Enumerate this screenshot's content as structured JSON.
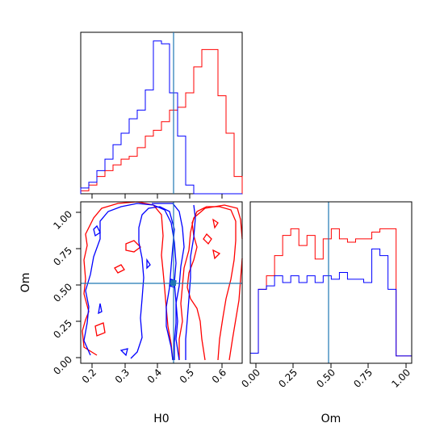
{
  "chart_data": {
    "type": "corner",
    "parameters": [
      "H0",
      "Om"
    ],
    "truth": {
      "H0": 0.45,
      "Om": 0.515
    },
    "truth_color": "#1f77b4",
    "series_colors": [
      "#ff0000",
      "#0000ff"
    ],
    "panels": {
      "H0_hist": {
        "type": "histogram",
        "xlim": [
          0.17,
          0.66
        ],
        "bin_edges": [
          0.17,
          0.1945,
          0.219,
          0.2435,
          0.268,
          0.2925,
          0.317,
          0.3415,
          0.366,
          0.3905,
          0.415,
          0.4395,
          0.464,
          0.4885,
          0.513,
          0.5375,
          0.562,
          0.5865,
          0.611,
          0.6355,
          0.66
        ],
        "series": [
          {
            "color": "#ff0000",
            "values": [
              0.5,
              1.5,
              3,
              4,
              5,
              6,
              6.5,
              8,
              10,
              11,
              12.5,
              14.5,
              15,
              17.5,
              22,
              25,
              25,
              17,
              10.5,
              3
            ]
          },
          {
            "color": "#0000ff",
            "values": [
              1,
              2,
              4,
              6,
              8.5,
              10.5,
              13,
              14.5,
              18,
              26.5,
              26,
              17.5,
              10,
              1.5,
              0,
              0,
              0,
              0,
              0,
              0
            ]
          }
        ]
      },
      "Om_hist": {
        "type": "histogram",
        "xlim": [
          -0.04,
          1.04
        ],
        "xticks": [
          "0.00",
          "0.25",
          "0.50",
          "0.75",
          "1.00"
        ],
        "bin_edges": [
          -0.04,
          0.0142,
          0.0684,
          0.1226,
          0.1768,
          0.231,
          0.2852,
          0.3394,
          0.3936,
          0.4478,
          0.502,
          0.5562,
          0.6104,
          0.6646,
          0.7188,
          0.773,
          0.8272,
          0.8814,
          0.9356,
          0.9898,
          1.04
        ],
        "series": [
          {
            "color": "#ff0000",
            "values": [
              1.5,
              11,
              13,
              16,
              19,
              20,
              17.5,
              19,
              15.5,
              18.5,
              20,
              18.5,
              18,
              18.5,
              18.5,
              19.5,
              20,
              20,
              1.1,
              1.1
            ]
          },
          {
            "color": "#0000ff",
            "values": [
              1.5,
              11,
              11.5,
              13,
              12,
              13,
              12,
              13,
              12,
              13,
              12.5,
              13.5,
              12.5,
              12.5,
              12,
              17,
              16,
              11,
              1.1,
              1.1
            ]
          }
        ]
      },
      "joint": {
        "type": "contour",
        "xlim": [
          0.17,
          0.66
        ],
        "ylim": [
          -0.04,
          1.08
        ],
        "xticks": [
          "0.2",
          "0.3",
          "0.4",
          "0.5",
          "0.6"
        ],
        "yticks": [
          "0.00",
          "0.25",
          "0.50",
          "0.75",
          "1.00"
        ],
        "xlabel": "H0",
        "ylabel": "Om",
        "xlabel_right": "Om"
      }
    }
  }
}
